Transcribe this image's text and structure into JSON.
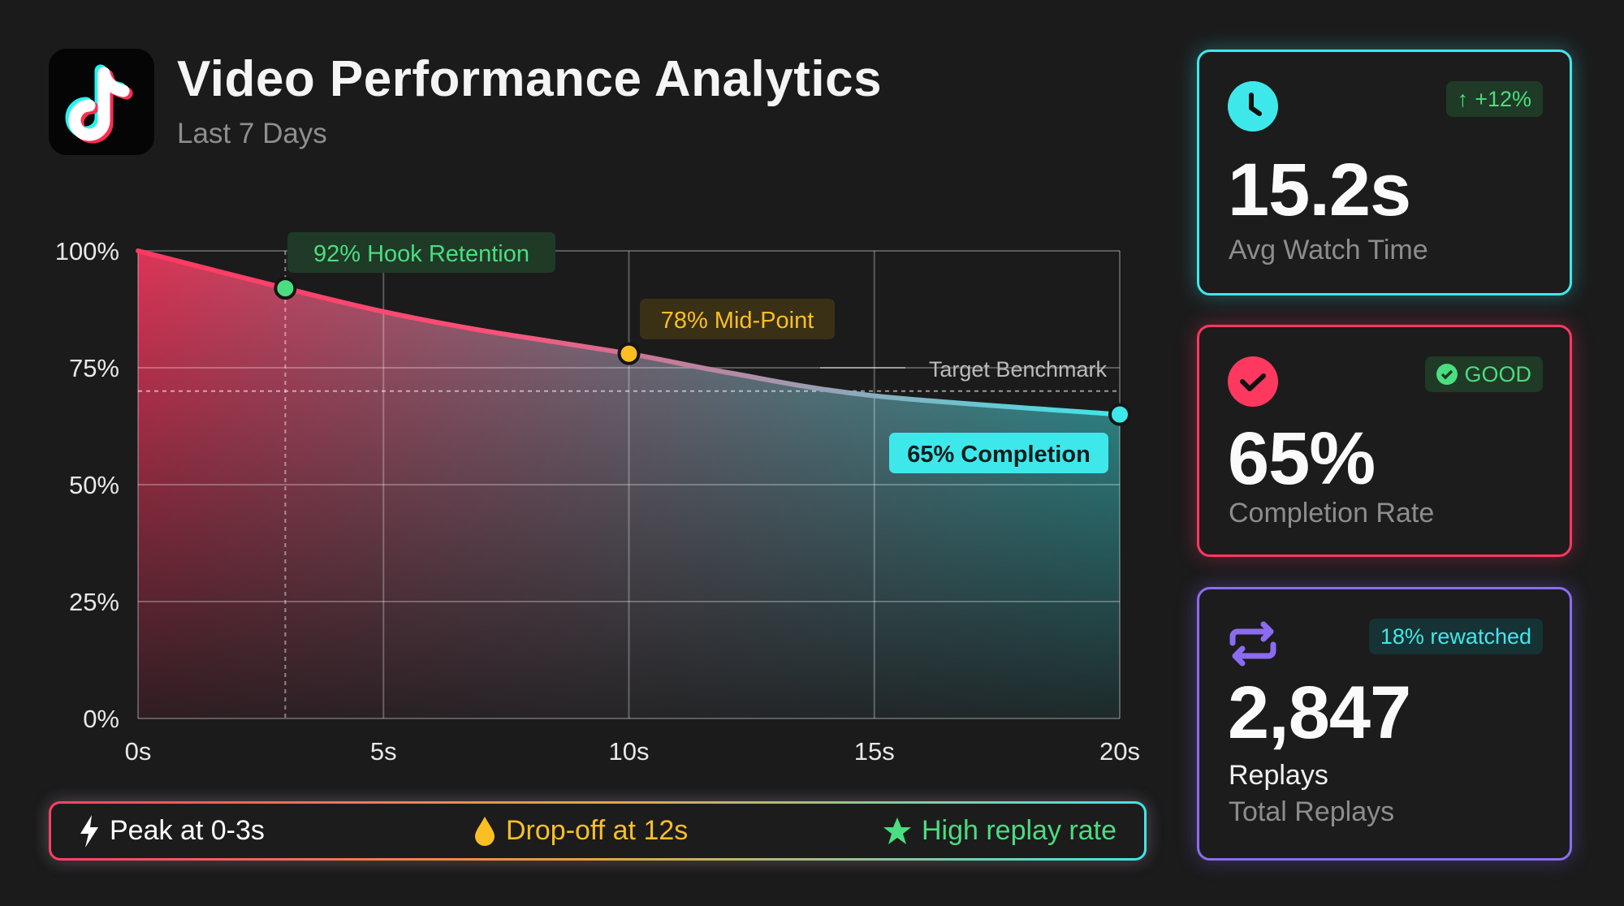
{
  "header": {
    "title": "Video Performance Analytics",
    "subtitle": "Last 7 Days",
    "logo_icon": "tiktok-logo-icon"
  },
  "chart_data": {
    "type": "area",
    "x": [
      0,
      3,
      5,
      7,
      10,
      12,
      15,
      20
    ],
    "values": [
      100,
      92,
      87,
      83,
      78,
      74,
      69,
      65
    ],
    "xlim": [
      0,
      20
    ],
    "ylim": [
      0,
      100
    ],
    "x_ticks": [
      "0s",
      "5s",
      "10s",
      "15s",
      "20s"
    ],
    "y_ticks": [
      "0%",
      "25%",
      "50%",
      "75%",
      "100%"
    ],
    "grid": true,
    "benchmark": {
      "value": 70,
      "label": "Target Benchmark"
    },
    "annotations": [
      {
        "x": 3,
        "y": 92,
        "label": "92% Hook Retention",
        "color": "#4ade80"
      },
      {
        "x": 10,
        "y": 78,
        "label": "78% Mid-Point",
        "color": "#fbbf24"
      },
      {
        "x": 20,
        "y": 65,
        "label": "65% Completion",
        "color": "#3ee8ea"
      }
    ],
    "gradient_colors": [
      "#ff3860",
      "#3ee8ea"
    ]
  },
  "cards": [
    {
      "icon": "clock-icon",
      "badge_icon": "arrow-up-icon",
      "badge": "+12%",
      "value": "15.2s",
      "label": "Avg Watch Time",
      "color": "#3ee8ea"
    },
    {
      "icon": "check-circle-icon",
      "badge_icon": "check-circle-icon",
      "badge": "GOOD",
      "value": "65%",
      "label": "Completion Rate",
      "color": "#ff3860"
    },
    {
      "icon": "repeat-icon",
      "badge": "18% rewatched",
      "value": "2,847",
      "unit": "Replays",
      "label": "Total Replays",
      "color": "#8b6cf0"
    }
  ],
  "insights": [
    {
      "icon": "lightning-icon",
      "text": "Peak at 0-3s",
      "color": "#ffffff"
    },
    {
      "icon": "drop-icon",
      "text": "Drop-off at 12s",
      "color": "#fbbf24"
    },
    {
      "icon": "star-icon",
      "text": "High replay rate",
      "color": "#4ade80"
    }
  ]
}
